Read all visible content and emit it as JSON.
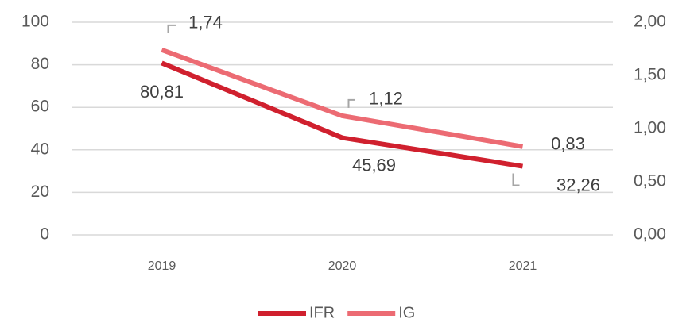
{
  "chart_data": {
    "type": "line",
    "categories": [
      "2019",
      "2020",
      "2021"
    ],
    "series": [
      {
        "name": "IFR",
        "color": "#d0202e",
        "values": [
          80.81,
          45.69,
          32.26
        ],
        "value_labels": [
          "80,81",
          "45,69",
          "32,26"
        ]
      },
      {
        "name": "IG",
        "color": "#ec6b73",
        "axis": "y2",
        "values": [
          1.74,
          1.12,
          0.83
        ],
        "value_labels": [
          "1,74",
          "1,12",
          "0,83"
        ]
      }
    ],
    "ylim": [
      0,
      100
    ],
    "yticks": [
      0,
      20,
      40,
      60,
      80,
      100
    ],
    "y2lim": [
      0,
      2
    ],
    "y2ticks": [
      {
        "value": 0,
        "label": "0,00"
      },
      {
        "value": 0.5,
        "label": "0,50"
      },
      {
        "value": 1,
        "label": "1,00"
      },
      {
        "value": 1.5,
        "label": "1,50"
      },
      {
        "value": 2,
        "label": "2,00"
      }
    ],
    "grid": true,
    "legend": "bottom"
  }
}
